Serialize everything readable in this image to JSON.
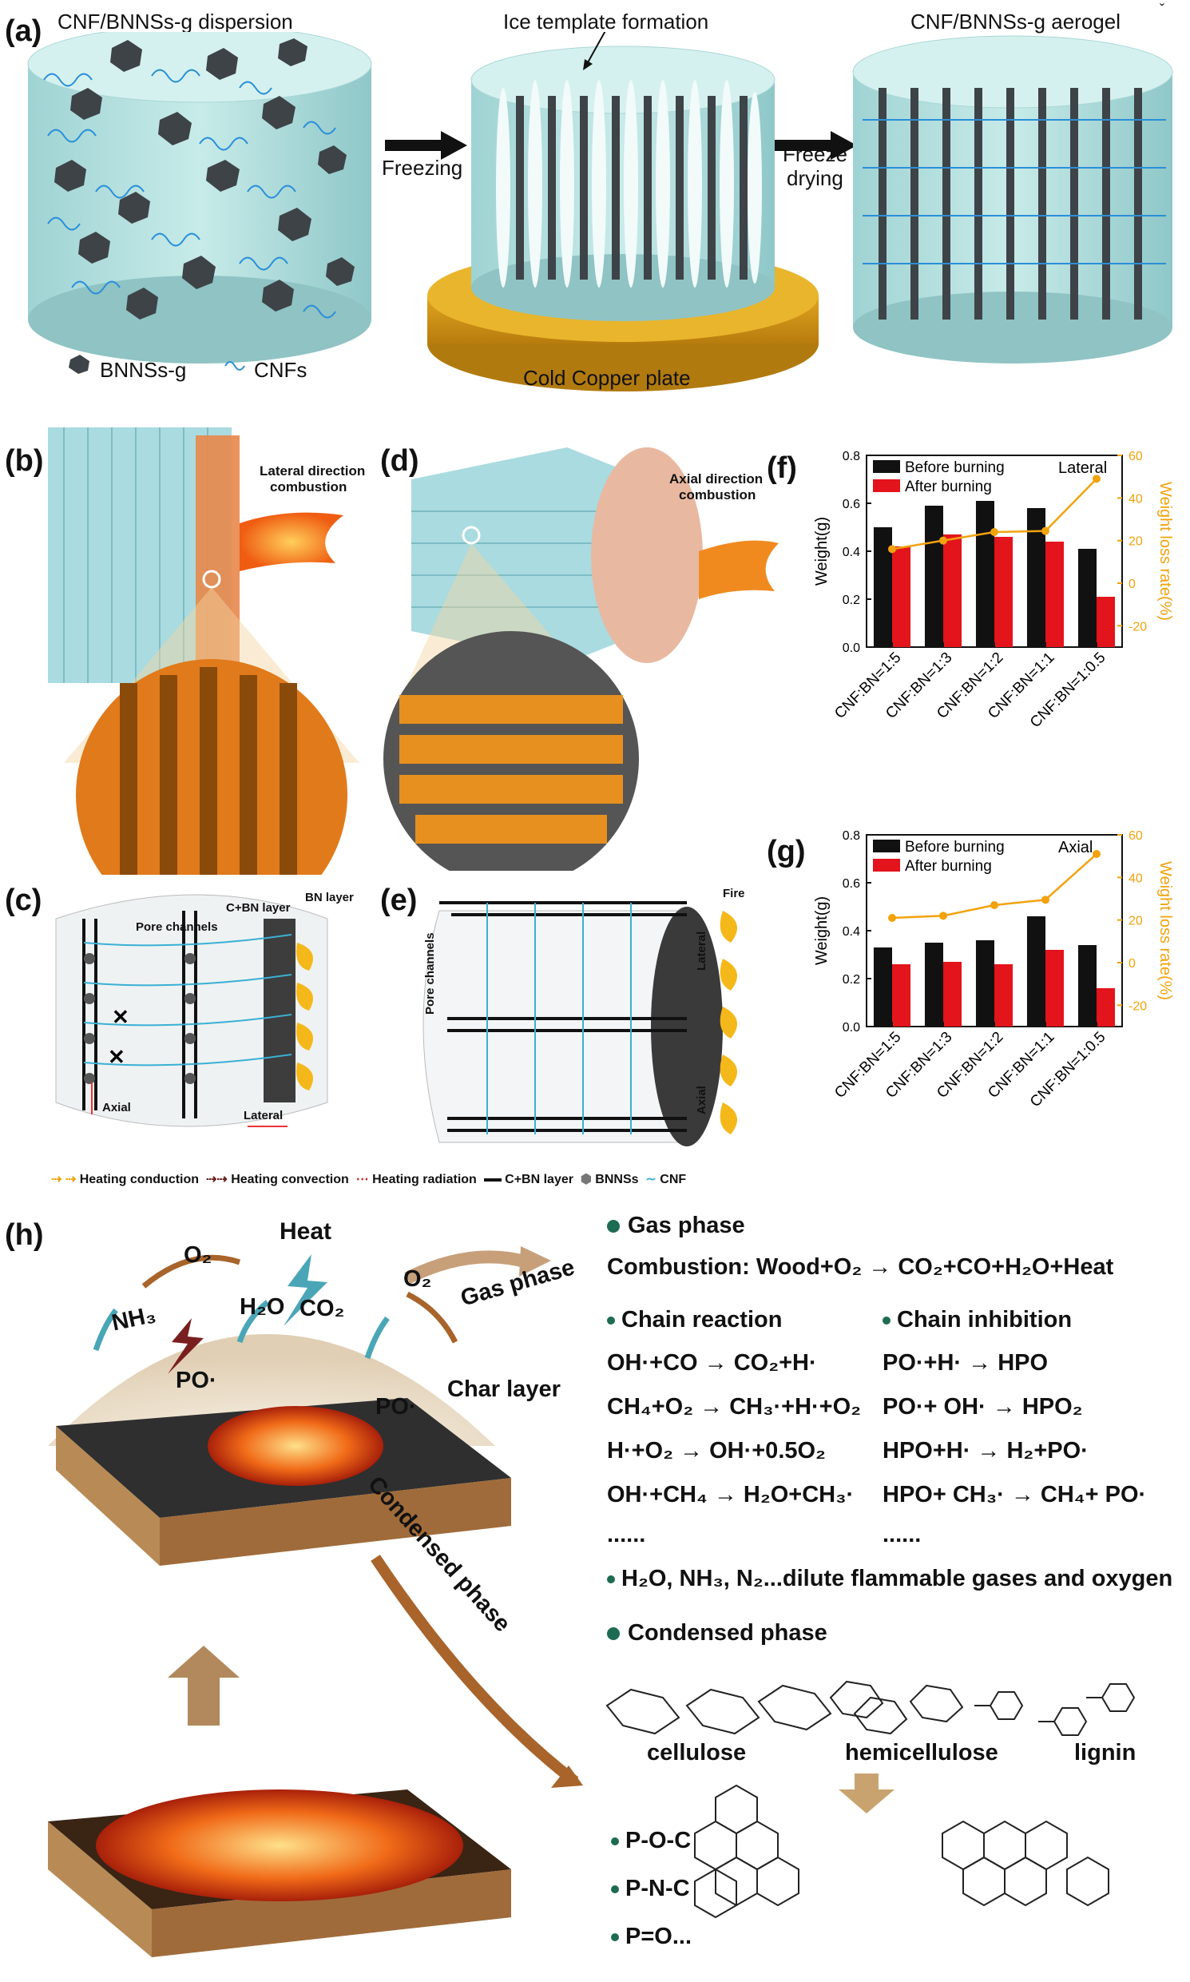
{
  "panels": {
    "a": "(a)",
    "b": "(b)",
    "c": "(c)",
    "d": "(d)",
    "e": "(e)",
    "f": "(f)",
    "g": "(g)",
    "h": "(h)"
  },
  "panel_a": {
    "dispersion_title": "CNF/BNNSs-g dispersion",
    "ice_title": "Ice template formation",
    "aerogel_title": "CNF/BNNSs-g aerogel",
    "freezing": "Freezing",
    "freeze_drying_1": "Freeze",
    "freeze_drying_2": "drying",
    "cold_plate": "Cold Copper plate",
    "legend_bnnss": "BNNSs-g",
    "legend_cnfs": "CNFs",
    "corner_mark": "ˇ"
  },
  "panel_b": {
    "label_1": "Lateral direction",
    "label_2": "combustion"
  },
  "panel_d": {
    "label_1": "Axial direction",
    "label_2": "combustion"
  },
  "panel_c": {
    "pore_channels": "Pore channels",
    "cbn_layer": "C+BN layer",
    "bn_layer": "BN layer",
    "axial": "Axial",
    "lateral": "Lateral"
  },
  "panel_e": {
    "fire": "Fire",
    "pore_channels": "Pore channels",
    "lateral": "Lateral",
    "axial": "Axial"
  },
  "legend_ce": {
    "conduction": "Heating conduction",
    "convection": "Heating convection",
    "radiation": "Heating radiation",
    "cbn": "C+BN layer",
    "bnnss": "BNNSs",
    "cnf": "CNF"
  },
  "chart_data": [
    {
      "type": "bar",
      "panel": "f",
      "annotation": "Lateral",
      "categories": [
        "CNF:BN=1:5",
        "CNF:BN=1:3",
        "CNF:BN=1:2",
        "CNF:BN=1:1",
        "CNF:BN=1:0.5"
      ],
      "series": [
        {
          "name": "Before burning",
          "color": "#111111",
          "values": [
            0.5,
            0.59,
            0.61,
            0.58,
            0.41
          ]
        },
        {
          "name": "After burning",
          "color": "#e3141b",
          "values": [
            0.42,
            0.47,
            0.46,
            0.44,
            0.21
          ]
        }
      ],
      "line": {
        "axis": "right",
        "color": "#f2a20c",
        "values": [
          16,
          20,
          24,
          24.5,
          49
        ]
      },
      "ylabel_left": "Weight(g)",
      "ylabel_right": "Weight loss rate(%)",
      "ylim_left": [
        0,
        0.8
      ],
      "yticks_left": [
        "0.0",
        "0.2",
        "0.4",
        "0.6",
        "0.8"
      ],
      "ylim_right": [
        -30,
        60
      ],
      "yticks_right": [
        "-20",
        "0",
        "20",
        "40",
        "60"
      ]
    },
    {
      "type": "bar",
      "panel": "g",
      "annotation": "Axial",
      "categories": [
        "CNF:BN=1:5",
        "CNF:BN=1:3",
        "CNF:BN=1:2",
        "CNF:BN=1:1",
        "CNF:BN=1:0.5"
      ],
      "series": [
        {
          "name": "Before burning",
          "color": "#111111",
          "values": [
            0.33,
            0.35,
            0.36,
            0.46,
            0.34
          ]
        },
        {
          "name": "After burning",
          "color": "#e3141b",
          "values": [
            0.26,
            0.27,
            0.26,
            0.32,
            0.16
          ]
        }
      ],
      "line": {
        "axis": "right",
        "color": "#f2a20c",
        "values": [
          21,
          22,
          27,
          29.5,
          51
        ]
      },
      "ylabel_left": "Weight(g)",
      "ylabel_right": "Weight loss rate(%)",
      "ylim_left": [
        0,
        0.8
      ],
      "yticks_left": [
        "0.0",
        "0.2",
        "0.4",
        "0.6",
        "0.8"
      ],
      "ylim_right": [
        -30,
        60
      ],
      "yticks_right": [
        "-20",
        "0",
        "20",
        "40",
        "60"
      ]
    }
  ],
  "panel_h": {
    "heat": "Heat",
    "o2": "O₂",
    "o2b": "O₂",
    "h2o": "H₂O",
    "co2": "CO₂",
    "nh3": "NH₃",
    "po1": "PO·",
    "po2": "PO·",
    "gas_phase_arrow": "Gas phase",
    "char_layer": "Char layer",
    "condensed_phase_arrow": "Condensed phase",
    "gas_phase_title": "Gas phase",
    "combustion": "Combustion: Wood+O₂ → CO₂+CO+H₂O+Heat",
    "chain_reaction": "Chain reaction",
    "chain_inhibition": "Chain inhibition",
    "reactions_left": [
      "OH·+CO → CO₂+H·",
      "CH₄+O₂ → CH₃·+H·+O₂",
      "H·+O₂ → OH·+0.5O₂",
      "OH·+CH₄ → H₂O+CH₃·",
      "......"
    ],
    "reactions_right": [
      "PO·+H· → HPO",
      "PO·+ OH· → HPO₂",
      "HPO+H· → H₂+PO·",
      "HPO+ CH₃· → CH₄+ PO·",
      "......"
    ],
    "dilute": "H₂O, NH₃, N₂...dilute flammable gases and oxygen",
    "condensed_title": "Condensed phase",
    "cellulose": "cellulose",
    "hemicellulose": "hemicellulose",
    "lignin": "lignin",
    "bonds": [
      "P-O-C",
      "P-N-C",
      "P=O..."
    ]
  }
}
